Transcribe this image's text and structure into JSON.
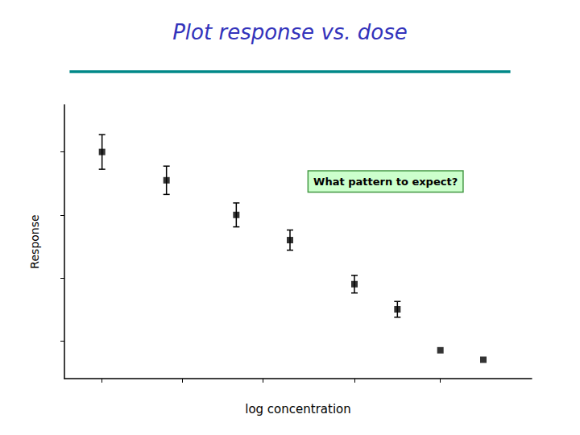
{
  "chart_data": {
    "type": "scatter",
    "title": "Plot response vs. dose",
    "xlabel": "log concentration",
    "ylabel": "Response",
    "annotation": "What pattern to expect?",
    "x": [
      1,
      2.2,
      3.5,
      4.5,
      5.7,
      6.5,
      7.3,
      8.1
    ],
    "values": [
      7.5,
      6.6,
      5.5,
      4.7,
      3.3,
      2.5,
      1.2,
      0.9
    ],
    "errors": [
      0.55,
      0.45,
      0.38,
      0.32,
      0.28,
      0.25,
      0.0,
      0.0
    ],
    "color": "#000000",
    "marker": "square",
    "xlim": [
      0.3,
      9.0
    ],
    "ylim": [
      0.3,
      9.0
    ],
    "xticks": [
      1,
      2.5,
      4,
      5.7,
      7.3
    ],
    "yticks": [
      1.5,
      3.5,
      5.5,
      7.5
    ],
    "tick_labels": false,
    "grid": false
  }
}
